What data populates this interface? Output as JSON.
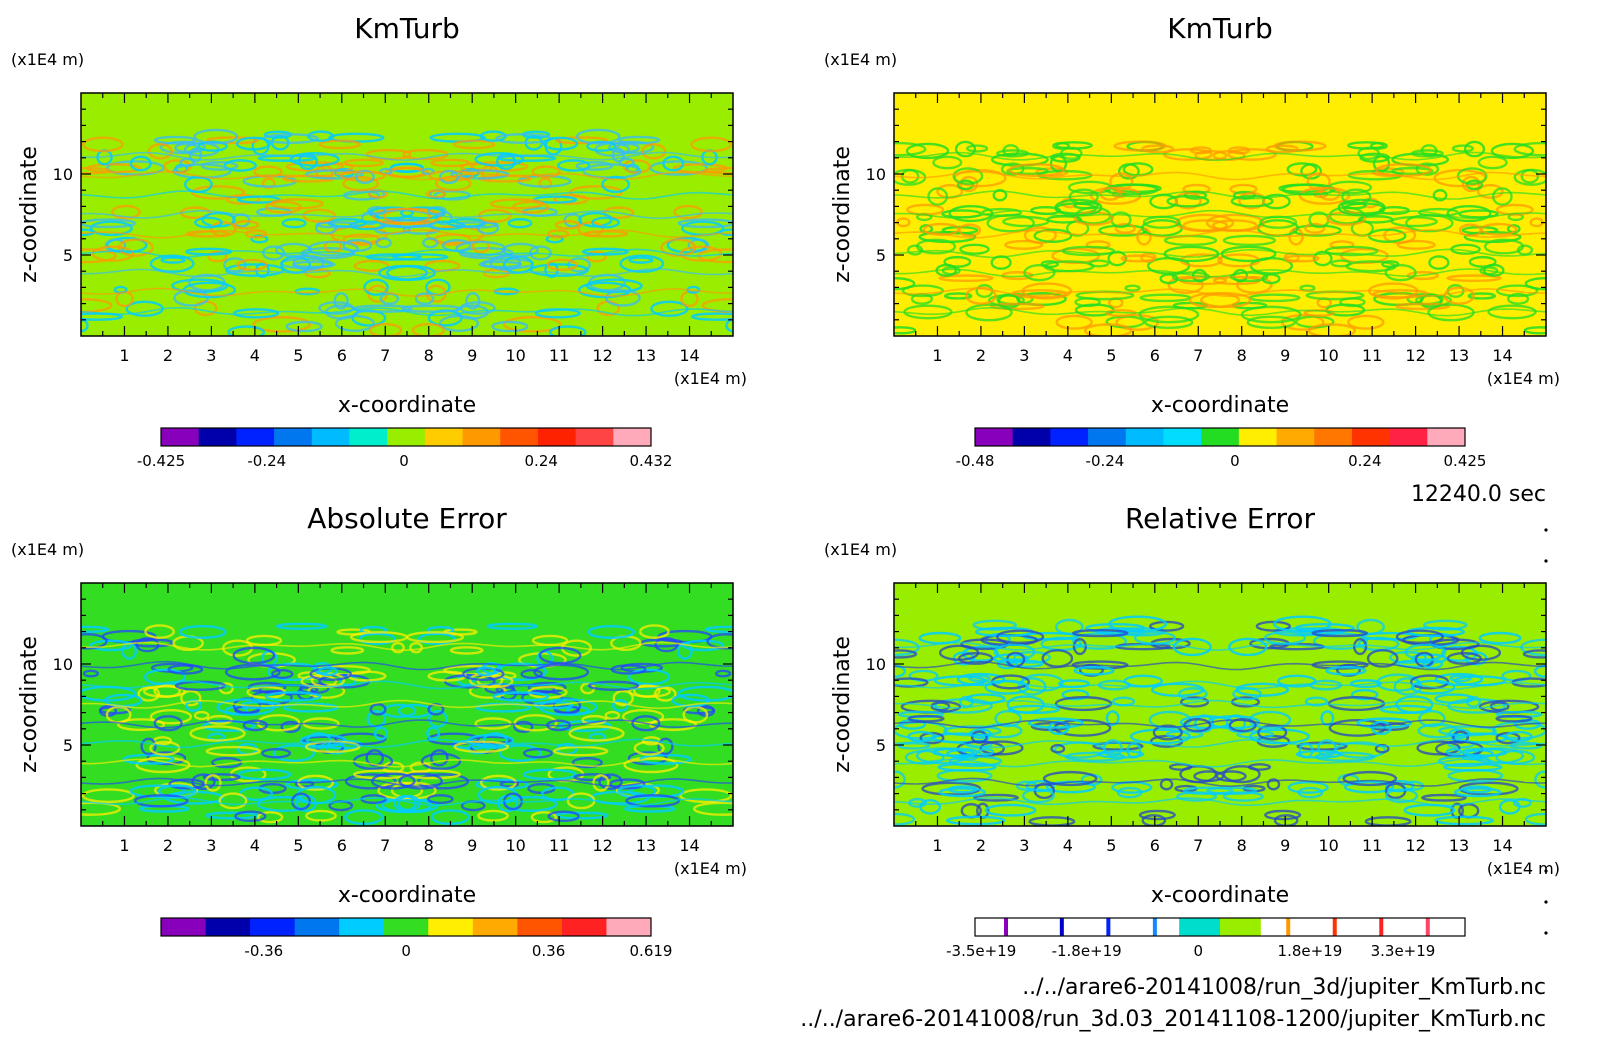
{
  "time_label": "12240.0 sec",
  "file_paths": [
    "../../arare6-20141008/run_3d/jupiter_KmTurb.nc",
    "../../arare6-20141008/run_3d.03_20141108-1200/jupiter_KmTurb.nc"
  ],
  "chart_data": [
    {
      "type": "heatmap",
      "title": "KmTurb",
      "xlabel": "x-coordinate",
      "ylabel": "z-coordinate",
      "x_unit": "(x1E4 m)",
      "y_unit": "(x1E4 m)",
      "xlim": [
        0,
        15
      ],
      "ylim": [
        0,
        15
      ],
      "xticks": [
        "1",
        "2",
        "3",
        "4",
        "5",
        "6",
        "7",
        "8",
        "9",
        "10",
        "11",
        "12",
        "13",
        "14"
      ],
      "yticks": [
        "5",
        "10"
      ],
      "background_color": "#99ee00",
      "pattern_colors": [
        "#00ccff",
        "#ff9900",
        "#33bbff"
      ],
      "colorbar": {
        "colors": [
          "#8800bb",
          "#0000aa",
          "#0022ff",
          "#0077ee",
          "#00bbff",
          "#00eecc",
          "#99ee00",
          "#ffcc00",
          "#ff9900",
          "#ff5500",
          "#ff2200",
          "#ff4444",
          "#ffaabb"
        ],
        "labels": [
          "-0.425",
          "-0.24",
          "0",
          "0.24",
          "0.432"
        ],
        "label_values": [
          -0.425,
          -0.24,
          0,
          0.24,
          0.432
        ],
        "range": [
          -0.425,
          0.432
        ]
      }
    },
    {
      "type": "heatmap",
      "title": "KmTurb",
      "xlabel": "x-coordinate",
      "ylabel": "z-coordinate",
      "x_unit": "(x1E4 m)",
      "y_unit": "(x1E4 m)",
      "xlim": [
        0,
        15
      ],
      "ylim": [
        0,
        15
      ],
      "xticks": [
        "1",
        "2",
        "3",
        "4",
        "5",
        "6",
        "7",
        "8",
        "9",
        "10",
        "11",
        "12",
        "13",
        "14"
      ],
      "yticks": [
        "5",
        "10"
      ],
      "background_color": "#ffee00",
      "pattern_colors": [
        "#22dd22",
        "#ff9900",
        "#22dd22"
      ],
      "colorbar": {
        "colors": [
          "#8800bb",
          "#0000aa",
          "#0022ff",
          "#0077ee",
          "#00bbff",
          "#00ddff",
          "#22dd22",
          "#ffee00",
          "#ffaa00",
          "#ff7700",
          "#ff3300",
          "#ff2244",
          "#ffaabb"
        ],
        "labels": [
          "-0.48",
          "-0.24",
          "0",
          "0.24",
          "0.425"
        ],
        "label_values": [
          -0.48,
          -0.24,
          0,
          0.24,
          0.425
        ],
        "range": [
          -0.48,
          0.425
        ]
      }
    },
    {
      "type": "heatmap",
      "title": "Absolute Error",
      "xlabel": "x-coordinate",
      "ylabel": "z-coordinate",
      "x_unit": "(x1E4 m)",
      "y_unit": "(x1E4 m)",
      "xlim": [
        0,
        15
      ],
      "ylim": [
        0,
        15
      ],
      "xticks": [
        "1",
        "2",
        "3",
        "4",
        "5",
        "6",
        "7",
        "8",
        "9",
        "10",
        "11",
        "12",
        "13",
        "14"
      ],
      "yticks": [
        "5",
        "10"
      ],
      "background_color": "#33dd22",
      "pattern_colors": [
        "#00ccff",
        "#2244ff",
        "#ffee00"
      ],
      "colorbar": {
        "colors": [
          "#8800bb",
          "#0000aa",
          "#0022ff",
          "#0077ee",
          "#00ccff",
          "#33dd22",
          "#ffee00",
          "#ffaa00",
          "#ff5500",
          "#ff2222",
          "#ffaabb"
        ],
        "labels": [
          "-0.36",
          "0",
          "0.36",
          "0.619"
        ],
        "label_values": [
          -0.36,
          0,
          0.36,
          0.619
        ],
        "range": [
          -0.62,
          0.619
        ]
      }
    },
    {
      "type": "heatmap",
      "title": "Relative Error",
      "xlabel": "x-coordinate",
      "ylabel": "z-coordinate",
      "x_unit": "(x1E4 m)",
      "y_unit": "(x1E4 m)",
      "xlim": [
        0,
        15
      ],
      "ylim": [
        0,
        15
      ],
      "xticks": [
        "1",
        "2",
        "3",
        "4",
        "5",
        "6",
        "7",
        "8",
        "9",
        "10",
        "11",
        "12",
        "13",
        "14"
      ],
      "yticks": [
        "5",
        "10"
      ],
      "background_color": "#99ee00",
      "pattern_colors": [
        "#00ccff",
        "#2244cc",
        "#00ccff"
      ],
      "colorbar": {
        "colors": [
          "#ffffff",
          "#ffffff",
          "#ffffff",
          "#ffffff",
          "#ffffff",
          "#00ddcc",
          "#99ee00",
          "#ffffff",
          "#ffffff",
          "#ffffff",
          "#ffffff",
          "#ffffff"
        ],
        "markers": [
          {
            "value": -3.1e+19,
            "color": "#8800bb"
          },
          {
            "value": -2.2e+19,
            "color": "#0000cc"
          },
          {
            "value": -1.45e+19,
            "color": "#0022ff"
          },
          {
            "value": -7e+18,
            "color": "#1188ff"
          },
          {
            "value": 1.45e+19,
            "color": "#ff9900"
          },
          {
            "value": 2.2e+19,
            "color": "#ff3300"
          },
          {
            "value": 2.95e+19,
            "color": "#ff2222"
          },
          {
            "value": 3.7e+19,
            "color": "#ff4466"
          }
        ],
        "labels": [
          "-3.5e+19",
          "-1.8e+19",
          "0",
          "1.8e+19",
          "3.3e+19"
        ],
        "label_values": [
          -3.5e+19,
          -1.8e+19,
          0,
          1.8e+19,
          3.3e+19
        ],
        "range": [
          -3.6e+19,
          4.3e+19
        ]
      }
    }
  ]
}
